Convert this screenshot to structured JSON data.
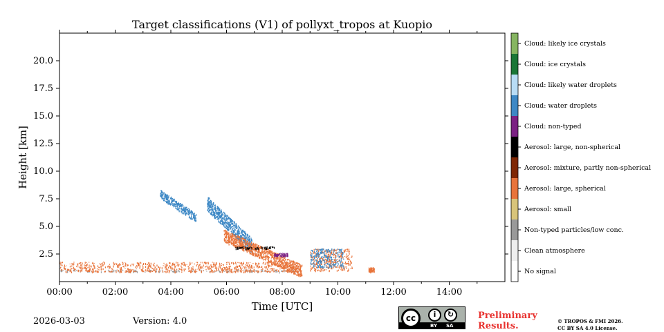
{
  "chart_data": {
    "type": "heatmap",
    "title": "Target classifications (V1) of pollyxt_tropos at Kuopio",
    "xlabel": "Time [UTC]",
    "ylabel": "Height [km]",
    "xlim": [
      0,
      16
    ],
    "ylim": [
      0,
      22.5
    ],
    "xticks": [
      {
        "value": 0,
        "label": "00:00"
      },
      {
        "value": 2,
        "label": "02:00"
      },
      {
        "value": 4,
        "label": "04:00"
      },
      {
        "value": 6,
        "label": "06:00"
      },
      {
        "value": 8,
        "label": "08:00"
      },
      {
        "value": 10,
        "label": "10:00"
      },
      {
        "value": 12,
        "label": "12:00"
      },
      {
        "value": 14,
        "label": "14:00"
      }
    ],
    "yticks": [
      {
        "value": 2.5,
        "label": "2.5"
      },
      {
        "value": 5.0,
        "label": "5.0"
      },
      {
        "value": 7.5,
        "label": "7.5"
      },
      {
        "value": 10.0,
        "label": "10.0"
      },
      {
        "value": 12.5,
        "label": "12.5"
      },
      {
        "value": 15.0,
        "label": "15.0"
      },
      {
        "value": 17.5,
        "label": "17.5"
      },
      {
        "value": 20.0,
        "label": "20.0"
      }
    ],
    "classes": [
      {
        "label": "No signal",
        "color": "#ffffff"
      },
      {
        "label": "Clean atmosphere",
        "color": "#eeeeee"
      },
      {
        "label": "Non-typed particles/low conc.",
        "color": "#999999"
      },
      {
        "label": "Aerosol: small",
        "color": "#d8c47a"
      },
      {
        "label": "Aerosol: large, spherical",
        "color": "#e8743b"
      },
      {
        "label": "Aerosol: mixture, partly non-spherical",
        "color": "#7f2704"
      },
      {
        "label": "Aerosol: large, non-spherical",
        "color": "#000000"
      },
      {
        "label": "Cloud: non-typed",
        "color": "#7b2183"
      },
      {
        "label": "Cloud: water droplets",
        "color": "#3d88c5"
      },
      {
        "label": "Cloud: likely water droplets",
        "color": "#b8dcf5"
      },
      {
        "label": "Cloud: ice crystals",
        "color": "#1a7636"
      },
      {
        "label": "Cloud: likely ice crystals",
        "color": "#86b561"
      }
    ],
    "features": [
      {
        "name": "boundary-layer",
        "class": "Non-typed particles/low conc.",
        "x": [
          0.0,
          8.6
        ],
        "y": [
          0.9,
          1.1
        ]
      },
      {
        "name": "boundary-aerosol",
        "class": "Aerosol: large, spherical",
        "x": [
          0.0,
          8.6
        ],
        "y": [
          0.9,
          1.8
        ]
      },
      {
        "name": "cirrus-fragment",
        "class": "Cloud: water droplets",
        "x": [
          3.6,
          4.9
        ],
        "y": [
          5.8,
          8.0
        ]
      },
      {
        "name": "cirrus-descending",
        "class": "Cloud: water droplets",
        "x": [
          5.3,
          6.9
        ],
        "y": [
          3.3,
          7.1
        ]
      },
      {
        "name": "aerosol-layer",
        "class": "Aerosol: large, spherical",
        "x": [
          5.9,
          8.7
        ],
        "y": [
          1.0,
          4.2
        ]
      },
      {
        "name": "dust-spots",
        "class": "Aerosol: large, non-spherical",
        "x": [
          6.3,
          7.7
        ],
        "y": [
          3.0,
          3.2
        ]
      },
      {
        "name": "cloud-nontyped",
        "class": "Cloud: non-typed",
        "x": [
          7.7,
          8.2
        ],
        "y": [
          2.3,
          2.6
        ]
      },
      {
        "name": "afternoon-aerosol",
        "class": "Aerosol: large, spherical",
        "x": [
          9.0,
          10.5
        ],
        "y": [
          1.0,
          3.0
        ]
      },
      {
        "name": "afternoon-cloud",
        "class": "Cloud: water droplets",
        "x": [
          9.0,
          10.2
        ],
        "y": [
          1.3,
          3.0
        ]
      },
      {
        "name": "late-aerosol",
        "class": "Aerosol: large, spherical",
        "x": [
          11.1,
          11.3
        ],
        "y": [
          0.9,
          1.3
        ]
      }
    ]
  },
  "footer": {
    "date": "2026-03-03",
    "version": "Version: 4.0",
    "cc_by": "BY",
    "cc_sa": "SA",
    "preliminary_line1": "Preliminary",
    "preliminary_line2": "Results.",
    "license_line1": "© TROPOS & FMI 2026.",
    "license_line2": "CC BY SA 4.0 License."
  }
}
